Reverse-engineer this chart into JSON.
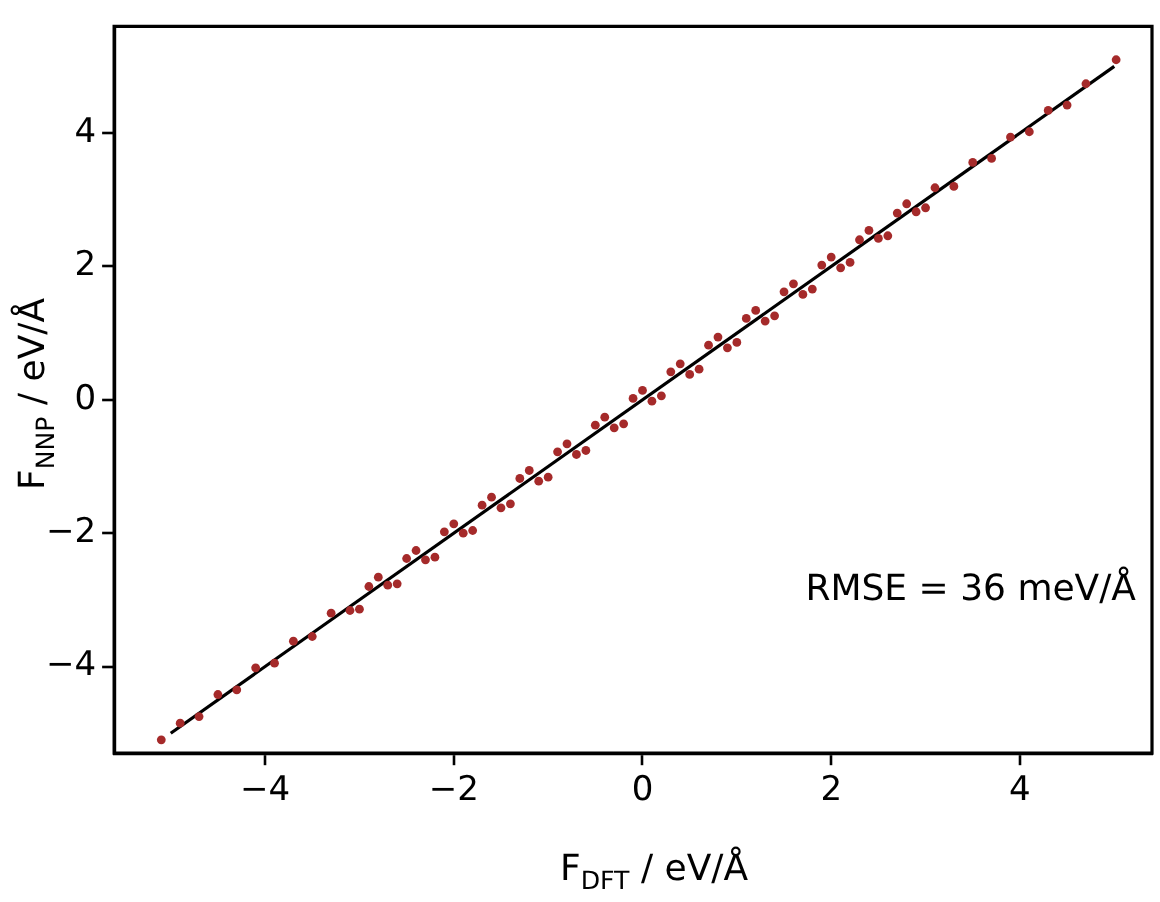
{
  "chart_data": {
    "type": "scatter",
    "xlabel": "F$_{DFT}$ / eV/Å",
    "ylabel": "F$_{NNP}$ / eV/Å",
    "xlim": [
      -5.6,
      5.4
    ],
    "xticks": [
      -4,
      -2,
      0,
      2,
      4
    ],
    "ylim": [
      -5.3,
      5.6
    ],
    "yticks": [
      -4,
      -2,
      0,
      2,
      4
    ],
    "marker": "circle",
    "legend": false,
    "annotations": [
      "RMSE = 36 meV/Å"
    ],
    "series": [
      {
        "color": "#a52a2a",
        "x": [
          -5.1,
          -4.9,
          -4.7,
          -4.5,
          -4.3,
          -4.1,
          -3.9,
          -3.7,
          -3.5,
          -3.3,
          -3.1,
          -2.9,
          -2.7,
          -2.5,
          -2.3,
          -2.1,
          -1.9,
          -1.7,
          -1.5,
          -1.3,
          -1.1,
          -0.9,
          -0.7,
          -0.5,
          -0.3,
          -0.1,
          0.1,
          0.3,
          0.5,
          0.7,
          0.9,
          1.1,
          1.3,
          1.5,
          1.7,
          1.9,
          2.1,
          2.3,
          2.5,
          2.7,
          2.9,
          3.1,
          3.3,
          3.5,
          3.7,
          3.9,
          4.1,
          4.3,
          4.5,
          4.7,
          5.02,
          -3.0,
          -2.8,
          -2.6,
          -2.4,
          -2.2,
          -2.0,
          -1.8,
          -1.6,
          -1.4,
          -1.2,
          -1.0,
          -0.8,
          -0.6,
          -0.4,
          -0.2,
          0.0,
          0.2,
          0.4,
          0.6,
          0.8,
          1.0,
          1.2,
          1.4,
          1.6,
          1.8,
          2.0,
          2.2,
          2.4,
          2.6,
          2.8,
          3.0
        ],
        "values": [
          -5.1,
          -4.85,
          -4.75,
          -4.42,
          -4.35,
          -4.02,
          -3.95,
          -3.62,
          -3.55,
          -3.2,
          -3.16,
          -2.8,
          -2.78,
          -2.38,
          -2.4,
          -1.98,
          -2.0,
          -1.58,
          -1.62,
          -1.18,
          -1.22,
          -0.78,
          -0.82,
          -0.38,
          -0.42,
          0.02,
          -0.02,
          0.42,
          0.38,
          0.82,
          0.78,
          1.22,
          1.18,
          1.62,
          1.58,
          2.02,
          1.98,
          2.4,
          2.42,
          2.8,
          2.82,
          3.18,
          3.2,
          3.56,
          3.62,
          3.94,
          4.02,
          4.34,
          4.42,
          4.74,
          5.1,
          -3.14,
          -2.66,
          -2.76,
          -2.26,
          -2.36,
          -1.86,
          -1.96,
          -1.46,
          -1.56,
          -1.06,
          -1.16,
          -0.66,
          -0.76,
          -0.26,
          -0.36,
          0.14,
          0.06,
          0.54,
          0.46,
          0.94,
          0.86,
          1.34,
          1.26,
          1.74,
          1.66,
          2.14,
          2.06,
          2.54,
          2.46,
          2.94,
          2.88
        ]
      },
      {
        "type": "line",
        "color": "#000000",
        "marker": "none",
        "line_style": "solid",
        "x": [
          -5,
          5
        ],
        "values": [
          -5,
          5
        ]
      }
    ]
  }
}
